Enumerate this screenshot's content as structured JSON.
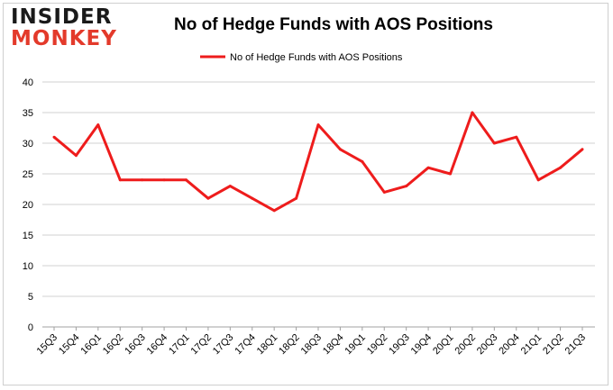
{
  "logo": {
    "line1": "INSIDER",
    "line2": "MONKEY"
  },
  "chart_data": {
    "type": "line",
    "title": "No of Hedge Funds with AOS Positions",
    "xlabel": "",
    "ylabel": "",
    "ylim": [
      0,
      40
    ],
    "yticks": [
      0,
      5,
      10,
      15,
      20,
      25,
      30,
      35,
      40
    ],
    "grid": true,
    "legend": "top-center",
    "categories": [
      "15Q3",
      "15Q4",
      "16Q1",
      "16Q2",
      "16Q3",
      "16Q4",
      "17Q1",
      "17Q2",
      "17Q3",
      "17Q4",
      "18Q1",
      "18Q2",
      "18Q3",
      "18Q4",
      "19Q1",
      "19Q2",
      "19Q3",
      "19Q4",
      "20Q1",
      "20Q2",
      "20Q3",
      "20Q4",
      "21Q1",
      "21Q2",
      "21Q3"
    ],
    "series": [
      {
        "name": "No of Hedge Funds with AOS Positions",
        "color": "#ee1c1c",
        "values": [
          31,
          28,
          33,
          24,
          24,
          24,
          24,
          21,
          23,
          21,
          19,
          21,
          33,
          29,
          27,
          22,
          23,
          26,
          25,
          35,
          30,
          31,
          24,
          26,
          29
        ]
      }
    ]
  }
}
